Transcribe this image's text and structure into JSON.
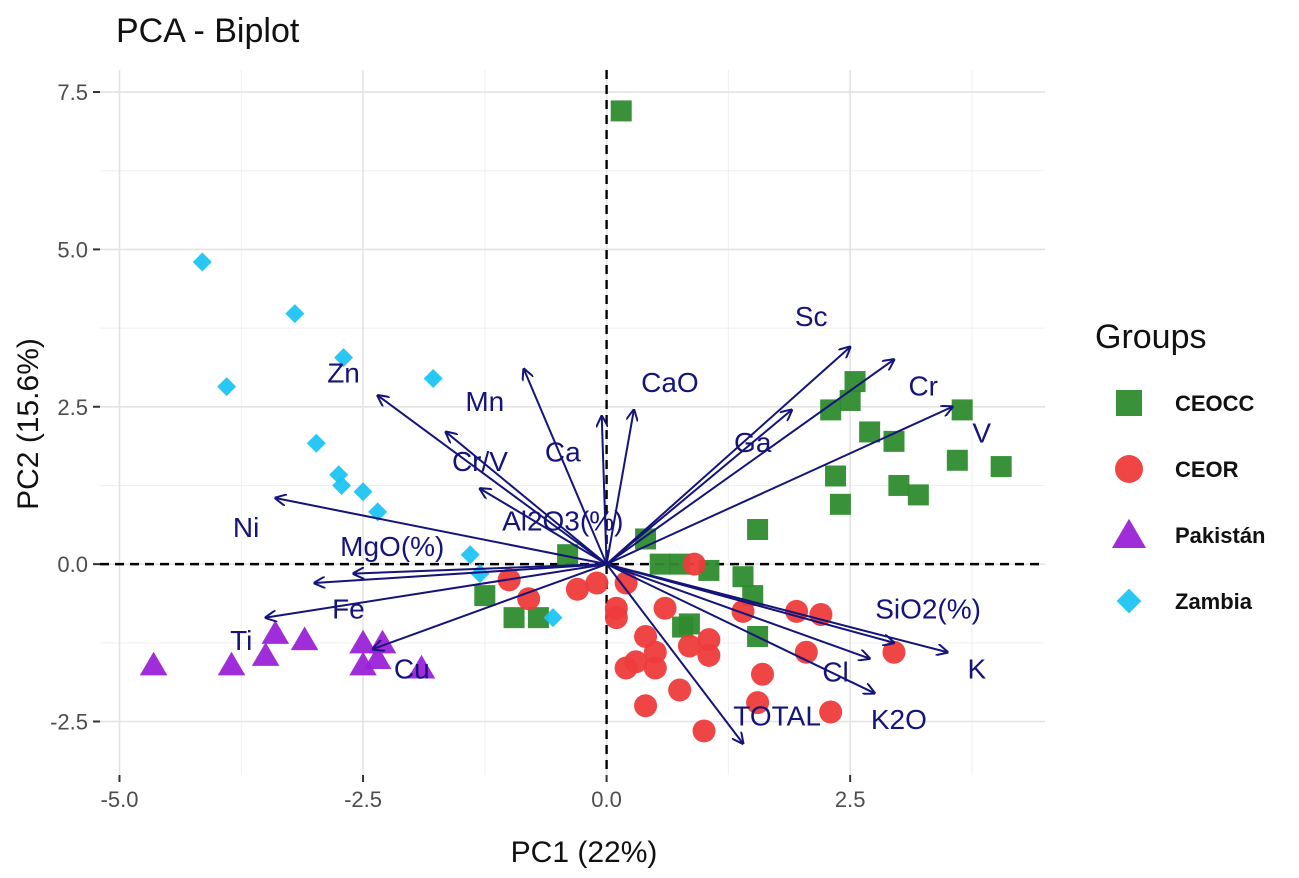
{
  "chart_data": {
    "type": "scatter",
    "title": "PCA - Biplot",
    "xlabel": "PC1 (22%)",
    "ylabel": "PC2 (15.6%)",
    "xlim": [
      -5.2,
      4.5
    ],
    "ylim": [
      -3.35,
      7.85
    ],
    "x_ticks": [
      -5.0,
      -2.5,
      0.0,
      2.5
    ],
    "x_tick_labels": [
      "-5.0",
      "-2.5",
      "0.0",
      "2.5"
    ],
    "y_ticks": [
      -2.5,
      0.0,
      2.5,
      5.0,
      7.5
    ],
    "y_tick_labels": [
      "-2.5",
      "0.0",
      "2.5",
      "5.0",
      "7.5"
    ],
    "grid": true,
    "reference_lines": {
      "x": 0,
      "y": 0,
      "style": "dashed"
    },
    "legend": {
      "title": "Groups",
      "position": "right"
    },
    "colors": {
      "CEOCC": "#2e8b2e",
      "CEOR": "#ee3b3b",
      "Pakistan": "#9b22d8",
      "Zambia": "#1ec4f5",
      "arrows": "#14147a"
    },
    "series": [
      {
        "name": "CEOCC",
        "marker": "square",
        "color": "#2e8b2e",
        "points": [
          [
            0.15,
            7.2
          ],
          [
            2.55,
            2.9
          ],
          [
            2.5,
            2.6
          ],
          [
            2.3,
            2.45
          ],
          [
            2.7,
            2.1
          ],
          [
            2.95,
            1.95
          ],
          [
            3.65,
            2.45
          ],
          [
            3.6,
            1.65
          ],
          [
            4.05,
            1.55
          ],
          [
            2.35,
            1.4
          ],
          [
            3.0,
            1.25
          ],
          [
            3.2,
            1.1
          ],
          [
            2.4,
            0.95
          ],
          [
            1.55,
            0.55
          ],
          [
            0.4,
            0.4
          ],
          [
            0.55,
            0.0
          ],
          [
            0.75,
            0.0
          ],
          [
            1.05,
            -0.1
          ],
          [
            1.4,
            -0.2
          ],
          [
            1.5,
            -0.5
          ],
          [
            1.55,
            -1.15
          ],
          [
            0.85,
            -0.95
          ],
          [
            0.78,
            -1.0
          ],
          [
            -0.4,
            0.15
          ],
          [
            -1.25,
            -0.5
          ],
          [
            -0.95,
            -0.85
          ],
          [
            -0.7,
            -0.85
          ]
        ]
      },
      {
        "name": "CEOR",
        "points": [
          [
            0.9,
            0.0
          ],
          [
            -0.1,
            -0.3
          ],
          [
            -0.3,
            -0.4
          ],
          [
            0.2,
            -0.3
          ],
          [
            -1.0,
            -0.25
          ],
          [
            -0.8,
            -0.55
          ],
          [
            0.1,
            -0.7
          ],
          [
            0.1,
            -0.85
          ],
          [
            0.6,
            -0.7
          ],
          [
            1.4,
            -0.75
          ],
          [
            1.95,
            -0.75
          ],
          [
            2.2,
            -0.8
          ],
          [
            0.4,
            -1.15
          ],
          [
            1.05,
            -1.2
          ],
          [
            0.85,
            -1.3
          ],
          [
            0.5,
            -1.4
          ],
          [
            1.05,
            -1.45
          ],
          [
            2.05,
            -1.4
          ],
          [
            2.95,
            -1.4
          ],
          [
            0.3,
            -1.55
          ],
          [
            0.2,
            -1.65
          ],
          [
            0.5,
            -1.65
          ],
          [
            1.6,
            -1.75
          ],
          [
            0.75,
            -2.0
          ],
          [
            0.4,
            -2.25
          ],
          [
            1.55,
            -2.2
          ],
          [
            2.3,
            -2.35
          ],
          [
            1.0,
            -2.65
          ]
        ],
        "marker": "circle",
        "color": "#ee3b3b"
      },
      {
        "name": "Pakistán",
        "marker": "triangle",
        "color": "#9b22d8",
        "points": [
          [
            -4.65,
            -1.6
          ],
          [
            -3.85,
            -1.6
          ],
          [
            -3.5,
            -1.45
          ],
          [
            -3.4,
            -1.1
          ],
          [
            -3.1,
            -1.2
          ],
          [
            -2.5,
            -1.25
          ],
          [
            -2.3,
            -1.25
          ],
          [
            -2.5,
            -1.6
          ],
          [
            -2.35,
            -1.5
          ],
          [
            -1.9,
            -1.65
          ]
        ]
      },
      {
        "name": "Zambia",
        "marker": "diamond",
        "color": "#1ec4f5",
        "points": [
          [
            -4.15,
            4.8
          ],
          [
            -3.2,
            3.98
          ],
          [
            -3.9,
            2.82
          ],
          [
            -2.7,
            3.28
          ],
          [
            -1.78,
            2.95
          ],
          [
            -2.98,
            1.92
          ],
          [
            -2.75,
            1.42
          ],
          [
            -2.72,
            1.25
          ],
          [
            -2.5,
            1.15
          ],
          [
            -2.35,
            0.83
          ],
          [
            -1.4,
            0.15
          ],
          [
            -1.3,
            -0.15
          ],
          [
            -0.55,
            -0.85
          ]
        ]
      }
    ],
    "loadings": [
      {
        "name": "Sc",
        "x": 2.5,
        "y": 3.45,
        "label_x": 2.1,
        "label_y": 3.9
      },
      {
        "name": "Cr",
        "x": 2.95,
        "y": 3.25,
        "label_x": 3.25,
        "label_y": 2.8
      },
      {
        "name": "V",
        "x": 3.55,
        "y": 2.5,
        "label_x": 3.85,
        "label_y": 2.05
      },
      {
        "name": "Ga",
        "x": 1.9,
        "y": 2.45,
        "label_x": 1.5,
        "label_y": 1.9
      },
      {
        "name": "CaO",
        "x": 0.28,
        "y": 2.45,
        "label_x": 0.65,
        "label_y": 2.85
      },
      {
        "name": "Ca",
        "x": -0.05,
        "y": 2.35,
        "label_x": -0.45,
        "label_y": 1.75
      },
      {
        "name": "Mn",
        "x": -0.85,
        "y": 3.1,
        "label_x": -1.25,
        "label_y": 2.55
      },
      {
        "name": "Cr/V",
        "x": -1.65,
        "y": 2.1,
        "label_x": -1.3,
        "label_y": 1.6
      },
      {
        "name": "Zn",
        "x": -2.35,
        "y": 2.68,
        "label_x": -2.7,
        "label_y": 3.0
      },
      {
        "name": "Al2O3(%)",
        "x": -1.3,
        "y": 1.2,
        "label_x": -0.45,
        "label_y": 0.65
      },
      {
        "name": "Ni",
        "x": -3.4,
        "y": 1.05,
        "label_x": -3.7,
        "label_y": 0.55
      },
      {
        "name": "MgO(%)",
        "x": -2.6,
        "y": -0.15,
        "label_x": -2.2,
        "label_y": 0.25
      },
      {
        "name": "Fe",
        "x": -3.0,
        "y": -0.3,
        "label_x": -2.65,
        "label_y": -0.75
      },
      {
        "name": "Ti",
        "x": -3.5,
        "y": -0.85,
        "label_x": -3.75,
        "label_y": -1.25
      },
      {
        "name": "Cu",
        "x": -2.4,
        "y": -1.35,
        "label_x": -2.0,
        "label_y": -1.7
      },
      {
        "name": "SiO2(%)",
        "x": 2.95,
        "y": -1.25,
        "label_x": 3.3,
        "label_y": -0.75
      },
      {
        "name": "K",
        "x": 3.5,
        "y": -1.4,
        "label_x": 3.8,
        "label_y": -1.7
      },
      {
        "name": "Cl",
        "x": 2.7,
        "y": -1.5,
        "label_x": 2.35,
        "label_y": -1.75
      },
      {
        "name": "K2O",
        "x": 2.75,
        "y": -2.05,
        "label_x": 3.0,
        "label_y": -2.5
      },
      {
        "name": "TOTAL",
        "x": 1.4,
        "y": -2.85,
        "label_x": 1.75,
        "label_y": -2.45
      }
    ]
  }
}
